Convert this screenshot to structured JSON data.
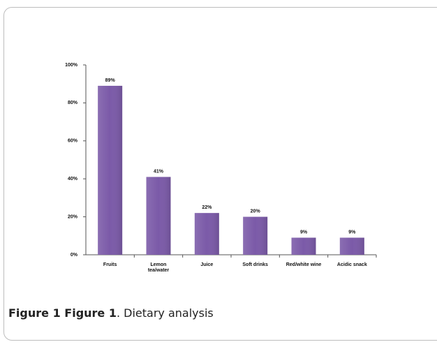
{
  "chart_data": {
    "type": "bar",
    "categories": [
      "Fruits",
      "Lemon\ntea/water",
      "Juice",
      "Soft drinks",
      "Red/white wine",
      "Acidic snack"
    ],
    "values": [
      89,
      41,
      22,
      20,
      9,
      9
    ],
    "value_labels": [
      "89%",
      "41%",
      "22%",
      "20%",
      "9%",
      "9%"
    ],
    "color": "#7b5aa8",
    "ylim": [
      0,
      100
    ],
    "yticks": [
      {
        "value": 0,
        "label": "0%"
      },
      {
        "value": 20,
        "label": "20%"
      },
      {
        "value": 40,
        "label": "40%"
      },
      {
        "value": 60,
        "label": "60%"
      },
      {
        "value": 80,
        "label": "80%"
      },
      {
        "value": 100,
        "label": "100%"
      }
    ],
    "grid": false
  },
  "caption": {
    "label": "Figure 1 Figure 1",
    "text": ". Dietary analysis"
  }
}
